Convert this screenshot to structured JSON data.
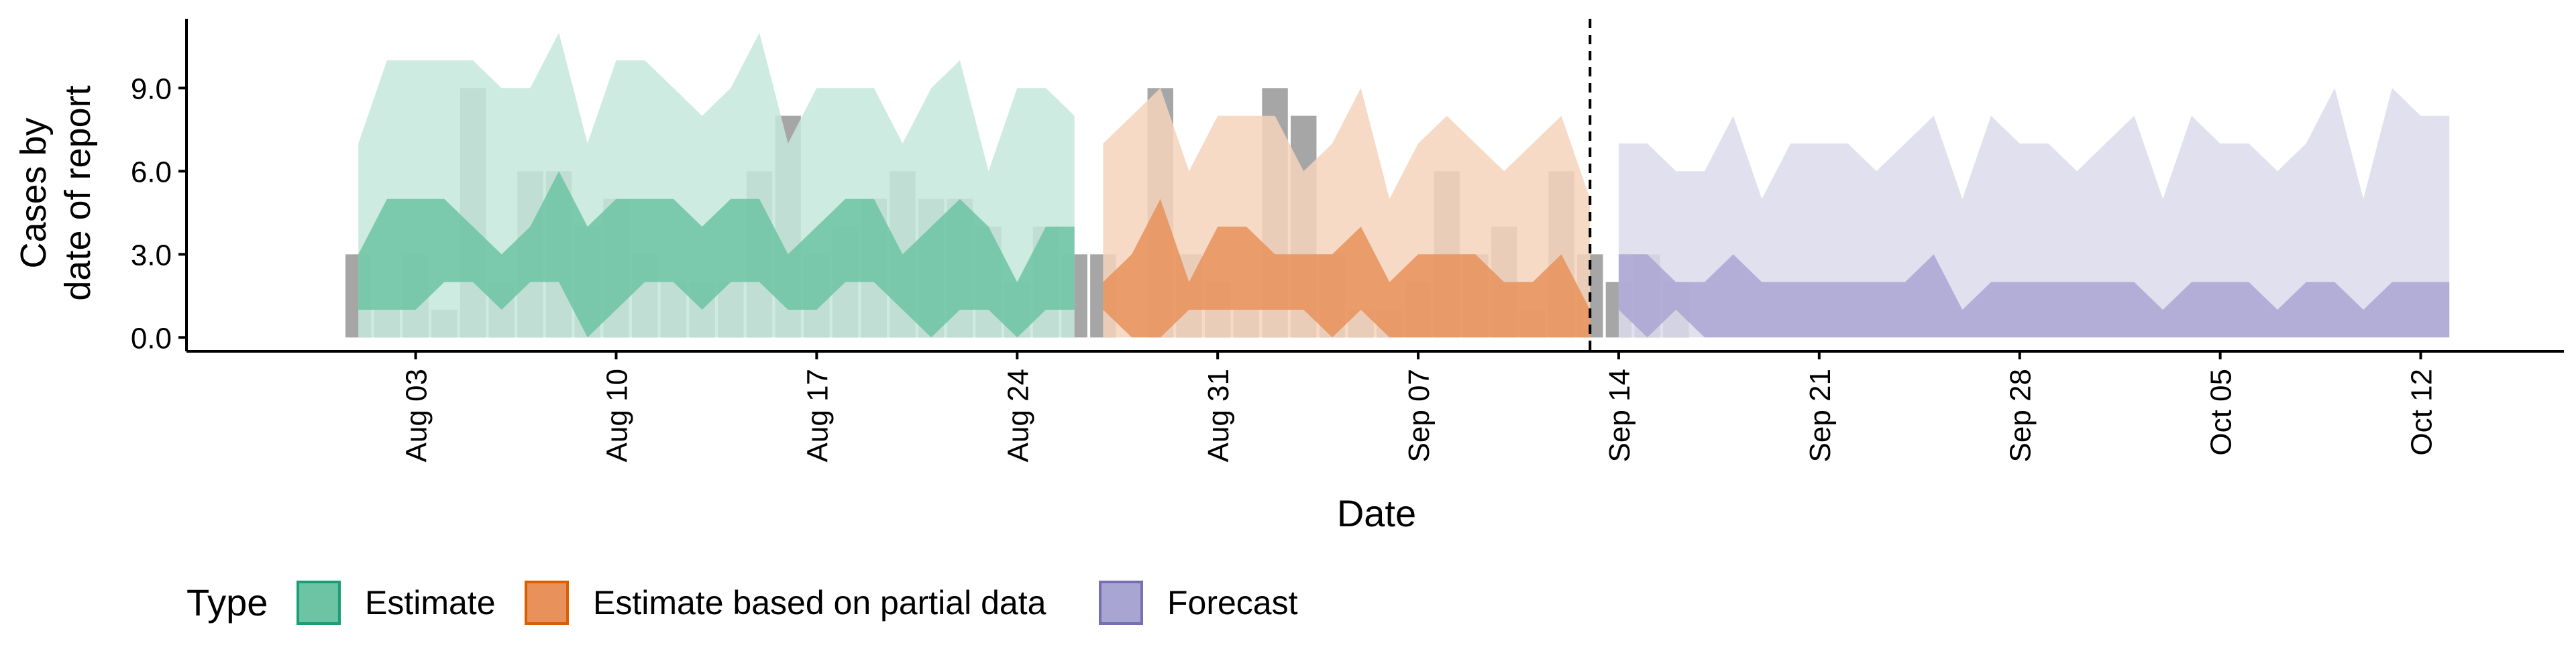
{
  "chart_data": {
    "type": "area",
    "title": "",
    "xlabel": "Date",
    "ylabel_lines": [
      "Cases by",
      "date of report"
    ],
    "ylim": [
      -0.5,
      11.5
    ],
    "y_ticks": [
      0,
      3,
      6,
      9
    ],
    "y_tick_labels": [
      "0.0",
      "3.0",
      "6.0",
      "9.0"
    ],
    "x_range": [
      "2025-07-26",
      "2025-10-17"
    ],
    "x_tick_dates": [
      "2025-08-03",
      "2025-08-10",
      "2025-08-17",
      "2025-08-24",
      "2025-08-31",
      "2025-09-07",
      "2025-09-14",
      "2025-09-21",
      "2025-09-28",
      "2025-10-05",
      "2025-10-12"
    ],
    "x_tick_labels": [
      "Aug 03",
      "Aug 10",
      "Aug 17",
      "Aug 24",
      "Aug 31",
      "Sep 07",
      "Sep 14",
      "Sep 21",
      "Sep 28",
      "Oct 05",
      "Oct 12"
    ],
    "vline_date": "2025-09-13",
    "reported_cases": {
      "color": "#a6a6a6",
      "start_date": "2025-08-01",
      "values": [
        3,
        1,
        3,
        1,
        9,
        2,
        6,
        6,
        4,
        5,
        3,
        2,
        2,
        2,
        6,
        8,
        3,
        4,
        5,
        6,
        5,
        5,
        4,
        2,
        4,
        3,
        3,
        0,
        9,
        3,
        2,
        1,
        9,
        8,
        3,
        1,
        1,
        2,
        6,
        3,
        4,
        1,
        6,
        3,
        2,
        3,
        2
      ]
    },
    "series": [
      {
        "name": "Estimate",
        "color": "#1b9e77",
        "fill": "#6cc4a4",
        "outer_fill": "#c5e7dc",
        "start_date": "2025-08-01",
        "lower_outer": [
          0,
          0,
          0,
          0,
          0,
          0,
          0,
          0,
          0,
          0,
          0,
          0,
          0,
          0,
          0,
          0,
          0,
          0,
          0,
          0,
          0,
          0,
          0,
          0,
          0,
          0
        ],
        "upper_outer": [
          7,
          10,
          10,
          10,
          10,
          9,
          9,
          11,
          7,
          10,
          10,
          9,
          8,
          9,
          11,
          7,
          9,
          9,
          9,
          7,
          9,
          10,
          6,
          9,
          9,
          8
        ],
        "lower_inner": [
          1,
          1,
          1,
          2,
          2,
          1,
          2,
          2,
          0,
          1,
          2,
          2,
          1,
          2,
          2,
          1,
          1,
          2,
          2,
          1,
          0,
          1,
          1,
          0,
          1,
          1
        ],
        "upper_inner": [
          3,
          5,
          5,
          5,
          4,
          3,
          4,
          6,
          4,
          5,
          5,
          5,
          4,
          5,
          5,
          3,
          4,
          5,
          5,
          3,
          4,
          5,
          4,
          2,
          4,
          4
        ]
      },
      {
        "name": "Estimate based on partial data",
        "color": "#d95f02",
        "fill": "#e8915a",
        "outer_fill": "#f5d3bc",
        "start_date": "2025-08-27",
        "lower_outer": [
          0,
          0,
          0,
          0,
          0,
          0,
          0,
          0,
          0,
          0,
          0,
          0,
          0,
          0,
          0,
          0,
          0,
          0
        ],
        "upper_outer": [
          7,
          8,
          9,
          6,
          8,
          8,
          8,
          6,
          7,
          9,
          5,
          7,
          8,
          7,
          6,
          7,
          8,
          5
        ],
        "lower_inner": [
          1,
          0,
          0,
          1,
          1,
          1,
          1,
          1,
          0,
          1,
          0,
          0,
          0,
          0,
          0,
          0,
          0,
          0
        ],
        "upper_inner": [
          2,
          3,
          5,
          2,
          4,
          4,
          3,
          3,
          3,
          4,
          2,
          3,
          3,
          3,
          2,
          2,
          3,
          1
        ]
      },
      {
        "name": "Forecast",
        "color": "#7570b3",
        "fill": "#a9a5d3",
        "outer_fill": "#dcdbec",
        "start_date": "2025-09-14",
        "lower_outer": [
          0,
          0,
          0,
          0,
          0,
          0,
          0,
          0,
          0,
          0,
          0,
          0,
          0,
          0,
          0,
          0,
          0,
          0,
          0,
          0,
          0,
          0,
          0,
          0,
          0,
          0,
          0,
          0,
          0,
          0
        ],
        "upper_outer": [
          7,
          7,
          6,
          6,
          8,
          5,
          7,
          7,
          7,
          6,
          7,
          8,
          5,
          8,
          7,
          7,
          6,
          7,
          8,
          5,
          8,
          7,
          7,
          6,
          7,
          9,
          5,
          9,
          8,
          8
        ],
        "lower_inner": [
          1,
          0,
          1,
          0,
          0,
          0,
          0,
          0,
          0,
          0,
          0,
          0,
          0,
          0,
          0,
          0,
          0,
          0,
          0,
          0,
          0,
          0,
          0,
          0,
          0,
          0,
          0,
          0,
          0,
          0
        ],
        "upper_inner": [
          3,
          3,
          2,
          2,
          3,
          2,
          2,
          2,
          2,
          2,
          2,
          3,
          1,
          2,
          2,
          2,
          2,
          2,
          2,
          1,
          2,
          2,
          2,
          1,
          2,
          2,
          1,
          2,
          2,
          2
        ]
      }
    ],
    "legend": {
      "title": "Type",
      "position": "bottom",
      "items": [
        "Estimate",
        "Estimate based on partial data",
        "Forecast"
      ]
    }
  }
}
